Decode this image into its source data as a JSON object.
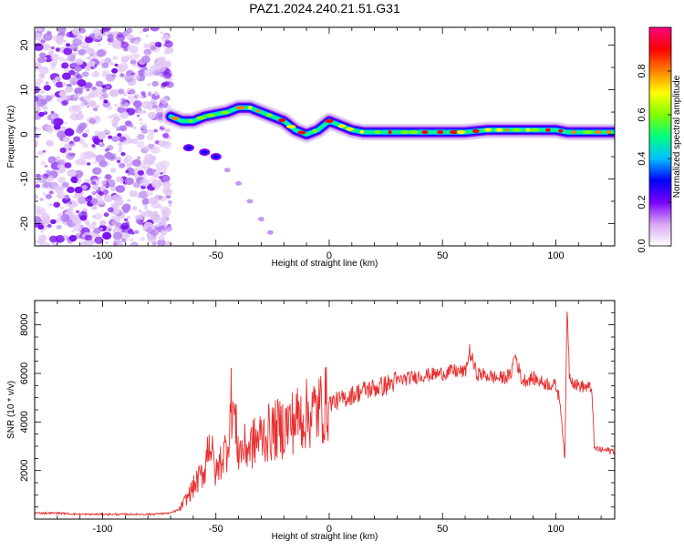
{
  "title": "PAZ1.2024.240.21.51.G31",
  "chart_data": [
    {
      "type": "heatmap",
      "xlabel": "Height of straight line (km)",
      "ylabel": "Frequency (Hz)",
      "xlim": [
        -130,
        126
      ],
      "ylim": [
        -25,
        24
      ],
      "xticks": [
        -100,
        -50,
        0,
        50,
        100
      ],
      "yticks": [
        -20,
        -10,
        0,
        10,
        20
      ],
      "colorbar": {
        "label": "Normalized spectral amplitude",
        "range": [
          0,
          1
        ],
        "ticks": [
          "0.0",
          "0.2",
          "0.4",
          "0.6",
          "0.8"
        ],
        "tick_values": [
          0,
          0.2,
          0.4,
          0.6,
          0.8
        ],
        "colormap": "rainbow",
        "colors": [
          "#ffffff",
          "#d9a6f2",
          "#7a00ff",
          "#0000ff",
          "#00c0ff",
          "#00ff80",
          "#80ff00",
          "#ffff00",
          "#ff8000",
          "#ff0000",
          "#ff0080"
        ]
      },
      "noise_region_x": [
        -130,
        -70
      ],
      "ridge": {
        "x": [
          -70,
          -65,
          -60,
          -55,
          -50,
          -45,
          -40,
          -35,
          -30,
          -25,
          -20,
          -15,
          -10,
          -5,
          0,
          5,
          10,
          15,
          20,
          30,
          40,
          50,
          60,
          70,
          80,
          90,
          95,
          100,
          105,
          110,
          126
        ],
        "y": [
          4,
          3,
          3,
          4,
          4.5,
          5,
          6,
          6,
          5,
          4,
          3,
          1,
          0,
          1,
          3,
          2,
          1,
          0.5,
          0.5,
          0.5,
          0.5,
          0.5,
          0.5,
          1,
          1,
          1,
          1,
          1,
          0.5,
          0.5,
          0.5
        ]
      },
      "branch": {
        "x": [
          -62,
          -55,
          -50,
          -45,
          -40,
          -35,
          -30,
          -26
        ],
        "y": [
          -3,
          -4,
          -5,
          -8,
          -11,
          -15,
          -19,
          -22
        ]
      }
    },
    {
      "type": "line",
      "xlabel": "Height of straight line (km)",
      "ylabel": "SNR (10 * v/v)",
      "xlim": [
        -130,
        126
      ],
      "ylim": [
        0,
        9000
      ],
      "xticks": [
        -100,
        -50,
        0,
        50,
        100
      ],
      "yticks": [
        2000,
        4000,
        6000,
        8000
      ],
      "color": "#e83030",
      "series": [
        {
          "x": [
            -130,
            -120,
            -110,
            -100,
            -90,
            -80,
            -70,
            -66,
            -62,
            -58,
            -55,
            -53,
            -50,
            -48,
            -45,
            -43,
            -40,
            -35,
            -30,
            -25,
            -20,
            -15,
            -10,
            -5,
            0,
            5,
            10,
            15,
            20,
            25,
            30,
            35,
            40,
            50,
            55,
            60,
            62,
            65,
            70,
            75,
            80,
            82,
            85,
            90,
            95,
            100,
            102,
            104,
            105,
            106,
            108,
            110,
            115,
            116,
            117,
            118,
            120,
            126
          ],
          "y": [
            250,
            250,
            200,
            200,
            200,
            200,
            250,
            400,
            1000,
            1600,
            2000,
            3400,
            1800,
            2400,
            3000,
            5000,
            2800,
            3000,
            3400,
            3600,
            3800,
            4100,
            4300,
            4500,
            4800,
            4900,
            5100,
            5300,
            5400,
            5500,
            5700,
            5800,
            5900,
            6000,
            6100,
            6050,
            6900,
            6000,
            5900,
            5800,
            5900,
            6800,
            5700,
            5800,
            5600,
            5500,
            4800,
            2400,
            8900,
            6000,
            5600,
            5500,
            5400,
            5300,
            2900,
            2900,
            2850,
            2800
          ]
        }
      ]
    }
  ]
}
